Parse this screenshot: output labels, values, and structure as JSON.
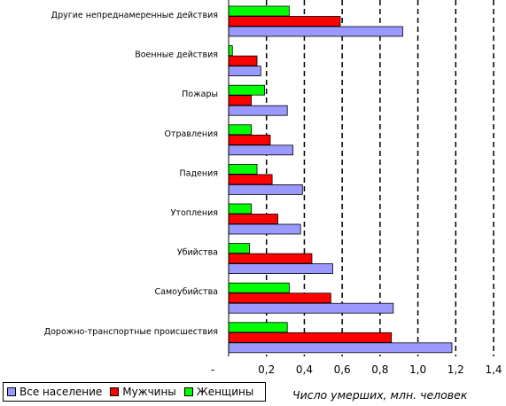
{
  "chart_data": {
    "type": "bar",
    "orientation": "horizontal",
    "categories": [
      "Другие непреднамеренные действия",
      "Военные действия",
      "Пожары",
      "Отравления",
      "Падения",
      "Утопления",
      "Убийства",
      "Самоубийства",
      "Дорожно-транспортные происшествия"
    ],
    "series": [
      {
        "name": "Все население",
        "color": "#9999ff",
        "values": [
          0.92,
          0.17,
          0.31,
          0.34,
          0.39,
          0.38,
          0.55,
          0.87,
          1.18
        ]
      },
      {
        "name": "Мужчины",
        "color": "#ff0000",
        "values": [
          0.59,
          0.15,
          0.12,
          0.22,
          0.23,
          0.26,
          0.44,
          0.54,
          0.86
        ]
      },
      {
        "name": "Женщины",
        "color": "#00ff00",
        "values": [
          0.32,
          0.02,
          0.19,
          0.12,
          0.15,
          0.12,
          0.11,
          0.32,
          0.31
        ]
      }
    ],
    "xlim": [
      0,
      1.4
    ],
    "ticks": [
      "-",
      "0,2",
      "0,4",
      "0,6",
      "0,8",
      "1,0",
      "1,2",
      "1,4"
    ],
    "xlabel": "Число умерших, млн. человек",
    "grid": "vertical-dashed",
    "legend": "bottom-left"
  }
}
